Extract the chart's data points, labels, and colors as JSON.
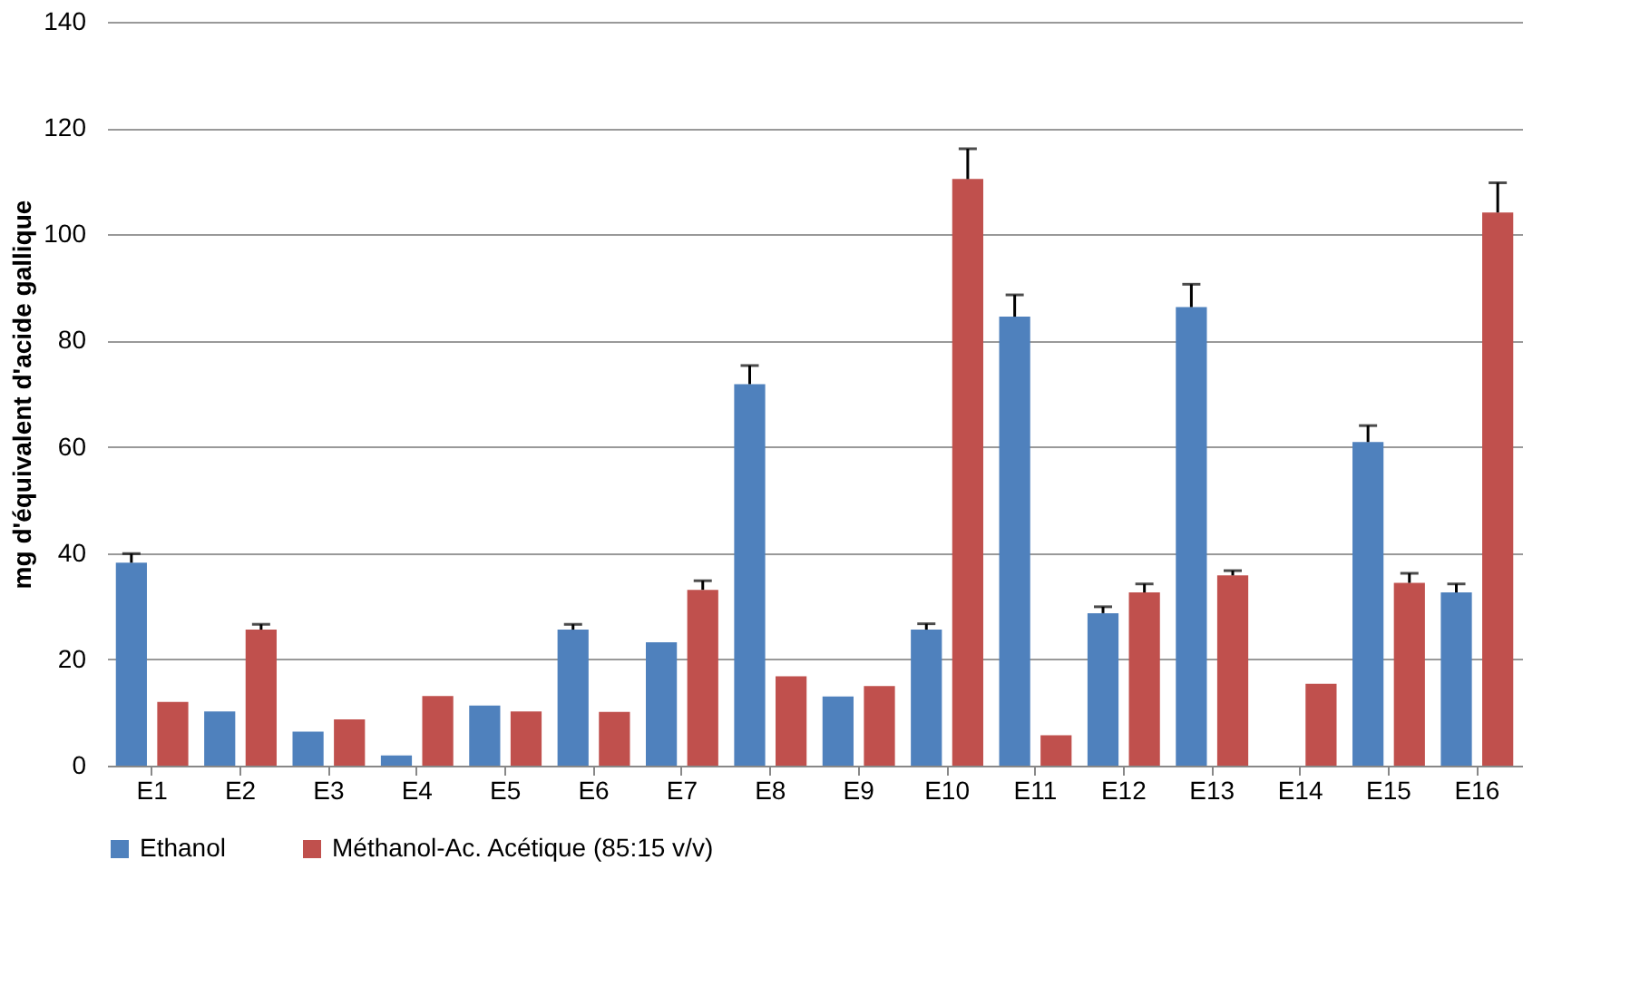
{
  "chart_data": {
    "type": "bar",
    "ylabel": "mg d'équivalent d'acide gallique",
    "categories": [
      "E1",
      "E2",
      "E3",
      "E4",
      "E5",
      "E6",
      "E7",
      "E8",
      "E9",
      "E10",
      "E11",
      "E12",
      "E13",
      "E14",
      "E15",
      "E16"
    ],
    "series": [
      {
        "name": "Ethanol",
        "color": "#4f81bd",
        "values": [
          38.2,
          10.2,
          6.4,
          1.9,
          11.3,
          25.6,
          23.2,
          71.8,
          13.0,
          25.6,
          84.5,
          28.7,
          86.3,
          null,
          60.9,
          32.6
        ],
        "errors": [
          [
            38.2,
            39.9
          ],
          null,
          null,
          null,
          null,
          [
            25.6,
            26.6
          ],
          null,
          [
            71.8,
            75.3
          ],
          null,
          [
            25.6,
            26.7
          ],
          [
            84.5,
            88.6
          ],
          [
            28.7,
            29.9
          ],
          [
            86.3,
            90.6
          ],
          null,
          [
            60.9,
            64.0
          ],
          [
            32.6,
            34.2
          ]
        ]
      },
      {
        "name": "Méthanol-Ac. Acétique (85:15 v/v)",
        "color": "#c0504d",
        "values": [
          12.0,
          25.6,
          8.7,
          13.1,
          10.2,
          10.1,
          33.1,
          16.8,
          15.0,
          110.4,
          5.7,
          32.6,
          35.8,
          15.4,
          34.4,
          104.1
        ],
        "errors": [
          null,
          [
            25.6,
            26.6
          ],
          null,
          null,
          null,
          null,
          [
            33.1,
            34.8
          ],
          null,
          null,
          [
            110.4,
            116.1
          ],
          null,
          [
            32.6,
            34.2
          ],
          [
            35.8,
            36.7
          ],
          null,
          [
            34.4,
            36.2
          ],
          [
            104.1,
            109.7
          ]
        ]
      }
    ],
    "ylim": [
      0,
      140
    ],
    "yticks": [
      0,
      20,
      40,
      60,
      80,
      100,
      120,
      140
    ],
    "grid": "y",
    "legend": "bottom"
  }
}
